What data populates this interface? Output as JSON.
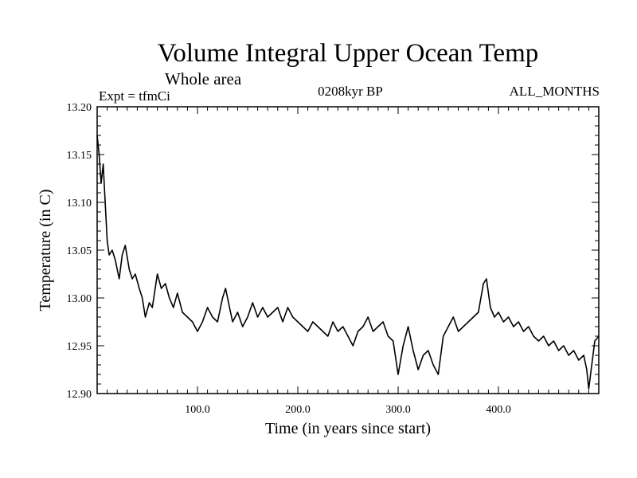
{
  "chart_data": {
    "type": "line",
    "title": "Volume Integral Upper Ocean Temp",
    "subtitle": "Whole area",
    "annotations": {
      "experiment": "Expt = tfmCi",
      "period": "0208kyr BP",
      "months": "ALL_MONTHS"
    },
    "xlabel": "Time (in years since start)",
    "ylabel": "Temperature (in C)",
    "xlim": [
      0,
      500
    ],
    "ylim": [
      12.9,
      13.2
    ],
    "x_ticks": [
      {
        "value": 100,
        "label": "100.0"
      },
      {
        "value": 200,
        "label": "200.0"
      },
      {
        "value": 300,
        "label": "300.0"
      },
      {
        "value": 400,
        "label": "400.0"
      }
    ],
    "y_ticks": [
      {
        "value": 12.9,
        "label": "12.90"
      },
      {
        "value": 12.95,
        "label": "12.95"
      },
      {
        "value": 13.0,
        "label": "13.00"
      },
      {
        "value": 13.05,
        "label": "13.05"
      },
      {
        "value": 13.1,
        "label": "13.10"
      },
      {
        "value": 13.15,
        "label": "13.15"
      },
      {
        "value": 13.2,
        "label": "13.20"
      }
    ],
    "grid": false,
    "line_color": "#000000",
    "series": [
      {
        "x": [
          0,
          2,
          4,
          6,
          8,
          10,
          12,
          15,
          18,
          22,
          25,
          28,
          32,
          35,
          38,
          42,
          45,
          48,
          52,
          55,
          60,
          64,
          68,
          72,
          76,
          80,
          85,
          90,
          95,
          100,
          105,
          110,
          115,
          120,
          125,
          128,
          132,
          135,
          140,
          145,
          150,
          155,
          160,
          165,
          170,
          175,
          180,
          185,
          190,
          195,
          200,
          205,
          210,
          215,
          220,
          225,
          230,
          235,
          240,
          245,
          250,
          255,
          260,
          265,
          270,
          275,
          280,
          285,
          290,
          295,
          300,
          305,
          310,
          315,
          320,
          325,
          330,
          335,
          340,
          345,
          350,
          355,
          360,
          365,
          370,
          375,
          380,
          385,
          388,
          392,
          396,
          400,
          405,
          410,
          415,
          420,
          425,
          430,
          435,
          440,
          445,
          450,
          455,
          460,
          465,
          470,
          475,
          480,
          485,
          488,
          490,
          493,
          496,
          500
        ],
        "y": [
          13.17,
          13.15,
          13.12,
          13.14,
          13.1,
          13.06,
          13.045,
          13.05,
          13.04,
          13.02,
          13.045,
          13.055,
          13.03,
          13.02,
          13.025,
          13.01,
          13.0,
          12.98,
          12.995,
          12.99,
          13.025,
          13.01,
          13.015,
          13.0,
          12.99,
          13.005,
          12.985,
          12.98,
          12.975,
          12.965,
          12.975,
          12.99,
          12.98,
          12.975,
          13.0,
          13.01,
          12.99,
          12.975,
          12.985,
          12.97,
          12.98,
          12.995,
          12.98,
          12.99,
          12.98,
          12.985,
          12.99,
          12.975,
          12.99,
          12.98,
          12.975,
          12.97,
          12.965,
          12.975,
          12.97,
          12.965,
          12.96,
          12.975,
          12.965,
          12.97,
          12.96,
          12.95,
          12.965,
          12.97,
          12.98,
          12.965,
          12.97,
          12.975,
          12.96,
          12.955,
          12.92,
          12.95,
          12.97,
          12.945,
          12.925,
          12.94,
          12.945,
          12.93,
          12.92,
          12.96,
          12.97,
          12.98,
          12.965,
          12.97,
          12.975,
          12.98,
          12.985,
          13.015,
          13.02,
          12.99,
          12.98,
          12.985,
          12.975,
          12.98,
          12.97,
          12.975,
          12.965,
          12.97,
          12.96,
          12.955,
          12.96,
          12.95,
          12.955,
          12.945,
          12.95,
          12.94,
          12.945,
          12.935,
          12.94,
          12.925,
          12.905,
          12.93,
          12.955,
          12.96
        ]
      }
    ]
  }
}
